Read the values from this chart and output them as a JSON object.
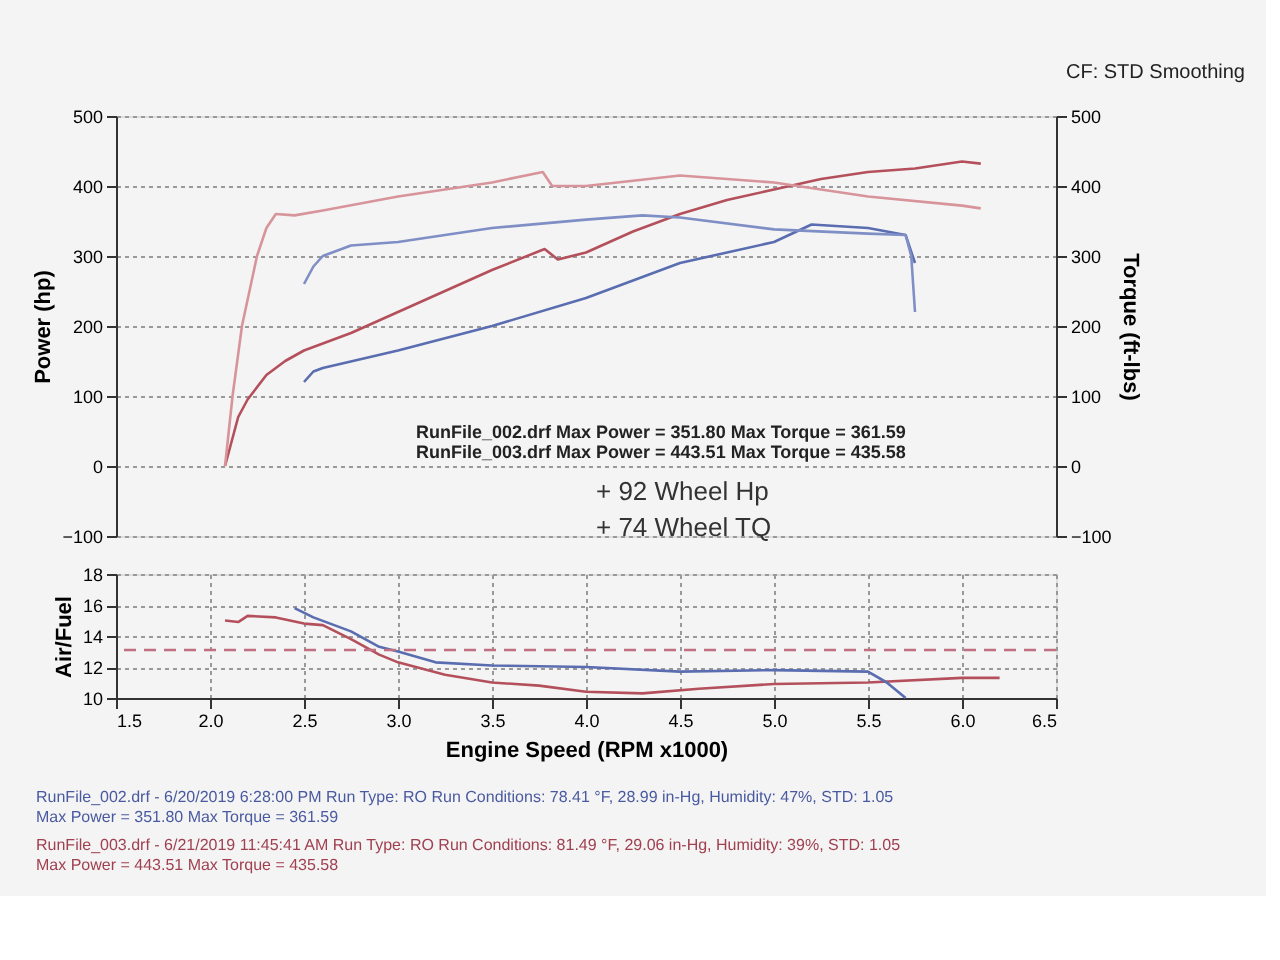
{
  "chart_data": [
    {
      "type": "line",
      "ylabel": "Power (hp)",
      "y2label": "Torque (ft-lbs)",
      "xlim": [
        1.5,
        6.5
      ],
      "xticks": [
        1.5,
        2.0,
        2.5,
        3.0,
        3.5,
        4.0,
        4.5,
        5.0,
        5.5,
        6.0,
        6.5
      ],
      "ylim": [
        -100,
        500
      ],
      "yticks": [
        -100,
        0,
        100,
        200,
        300,
        400,
        500
      ],
      "y2lim": [
        -100,
        500
      ],
      "y2ticks": [
        -100,
        0,
        100,
        200,
        300,
        400,
        500
      ],
      "grid": true,
      "tick_labels": "y",
      "line_style": "solid",
      "marker": "none",
      "series": [
        {
          "color": "#b4505c",
          "x": [
            2.08,
            2.12,
            2.15,
            2.2,
            2.3,
            2.4,
            2.5,
            2.75,
            3.0,
            3.25,
            3.5,
            3.78,
            3.85,
            4.0,
            4.25,
            4.5,
            4.75,
            5.0,
            5.25,
            5.5,
            5.75,
            6.0,
            6.1
          ],
          "values": [
            0,
            40,
            70,
            95,
            130,
            150,
            165,
            190,
            220,
            250,
            280,
            310,
            295,
            305,
            335,
            360,
            380,
            395,
            410,
            420,
            425,
            435,
            432
          ]
        },
        {
          "color": "#d7949a",
          "axis": "y2",
          "x": [
            2.08,
            2.12,
            2.17,
            2.25,
            2.3,
            2.35,
            2.45,
            2.6,
            3.0,
            3.5,
            3.77,
            3.82,
            4.0,
            4.5,
            5.0,
            5.5,
            6.0,
            6.1
          ],
          "values": [
            0,
            100,
            200,
            300,
            340,
            360,
            358,
            365,
            385,
            405,
            420,
            400,
            400,
            415,
            405,
            385,
            372,
            368
          ]
        },
        {
          "color": "#5a6db0",
          "x": [
            2.5,
            2.55,
            2.6,
            3.0,
            3.5,
            4.0,
            4.5,
            5.0,
            5.2,
            5.5,
            5.7,
            5.75
          ],
          "values": [
            120,
            135,
            140,
            165,
            200,
            240,
            290,
            320,
            345,
            340,
            330,
            290
          ]
        },
        {
          "color": "#7f8fc6",
          "axis": "y2",
          "x": [
            2.5,
            2.55,
            2.6,
            2.75,
            3.0,
            3.5,
            4.0,
            4.3,
            4.5,
            5.0,
            5.5,
            5.7,
            5.73,
            5.75
          ],
          "values": [
            260,
            285,
            300,
            315,
            320,
            340,
            352,
            358,
            355,
            338,
            332,
            330,
            300,
            220
          ]
        }
      ],
      "annotations": [
        "CF: STD Smoothing",
        "RunFile_002.drf Max Power = 351.80     Max Torque = 361.59",
        "RunFile_003.drf Max Power = 443.51     Max Torque = 435.58",
        "+ 92 Wheel Hp",
        "+ 74 Wheel TQ"
      ]
    },
    {
      "type": "line",
      "xlabel": "Engine Speed (RPM x1000)",
      "ylabel": "Air/Fuel",
      "xlim": [
        1.5,
        6.5
      ],
      "xticks": [
        1.5,
        {
          "value": 2,
          "label": "2.0"
        },
        2.5,
        {
          "value": 3,
          "label": "3.0"
        },
        3.5,
        {
          "value": 4,
          "label": "4.0"
        },
        4.5,
        {
          "value": 5,
          "label": "5.0"
        },
        5.5,
        {
          "value": 6,
          "label": "6.0"
        },
        6.5
      ],
      "ylim": [
        10,
        18
      ],
      "yticks": [
        10,
        12,
        14,
        16,
        18
      ],
      "grid": true,
      "line_style": "solid",
      "marker": "none",
      "series": [
        {
          "color": "#b4505c",
          "x": [
            2.08,
            2.15,
            2.2,
            2.35,
            2.5,
            2.6,
            2.75,
            2.9,
            3.0,
            3.25,
            3.5,
            3.75,
            4.0,
            4.3,
            4.6,
            5.0,
            5.5,
            6.0,
            6.2
          ],
          "values": [
            15.0,
            14.9,
            15.3,
            15.2,
            14.8,
            14.7,
            13.8,
            12.8,
            12.3,
            11.5,
            11.0,
            10.8,
            10.4,
            10.3,
            10.6,
            10.9,
            11.0,
            11.3,
            11.3
          ]
        },
        {
          "color": "#5a6db0",
          "x": [
            2.45,
            2.55,
            2.75,
            2.9,
            3.0,
            3.2,
            3.5,
            4.0,
            4.5,
            5.0,
            5.5,
            5.6,
            5.7
          ],
          "values": [
            15.8,
            15.2,
            14.3,
            13.3,
            13.0,
            12.3,
            12.1,
            12.0,
            11.7,
            11.8,
            11.7,
            11.0,
            10.0
          ]
        }
      ],
      "ref_lines": [
        {
          "axis": "y",
          "value": 13.1,
          "color": "#c07080",
          "line_style": "dashed"
        }
      ],
      "annotations": [
        "RunFile_002.drf - 6/20/2019 6:28:00 PM  Run Type: RO  Run Conditions: 78.41 °F, 28.99 in-Hg,  Humidity: 47%, STD: 1.05",
        "Max Power = 351.80  Max Torque = 361.59",
        "RunFile_003.drf - 6/21/2019 11:45:41 AM  Run Type: RO  Run Conditions: 81.49 °F, 29.06 in-Hg,  Humidity: 39%, STD: 1.05",
        "Max Power = 443.51  Max Torque = 435.58"
      ]
    }
  ]
}
